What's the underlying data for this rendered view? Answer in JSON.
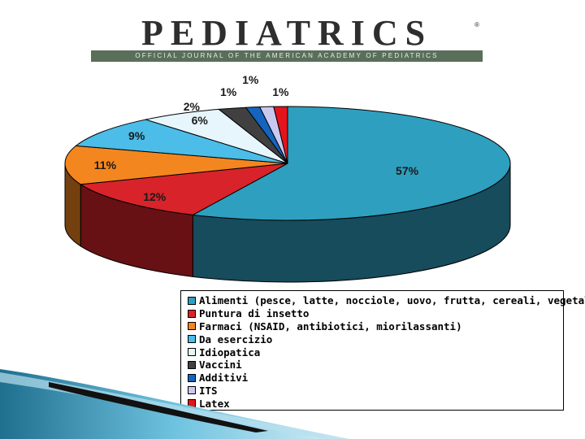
{
  "header": {
    "logo_title": "PEDIATRICS",
    "logo_subtitle": "OFFICIAL JOURNAL OF THE AMERICAN ACADEMY OF PEDIATRICS",
    "logo_mark": "®"
  },
  "chart_data": {
    "type": "pie",
    "style": "3d",
    "title": "",
    "legend_position": "bottom-right",
    "slices": [
      {
        "label": "Alimenti (pesce, latte, nocciole, uovo, frutta, cereali, vegetali)",
        "value": 57,
        "display": "57%",
        "color": "#2e9fbf"
      },
      {
        "label": "Puntura di insetto",
        "value": 12,
        "display": "12%",
        "color": "#d8232a"
      },
      {
        "label": "Farmaci (NSAID, antibiotici, miorilassanti)",
        "value": 11,
        "display": "11%",
        "color": "#f4861f"
      },
      {
        "label": "Da esercizio",
        "value": 9,
        "display": "9%",
        "color": "#4bbde8"
      },
      {
        "label": "Idiopatica",
        "value": 6,
        "display": "6%",
        "color": "#e6f6fc"
      },
      {
        "label": "Vaccini",
        "value": 2,
        "display": "2%",
        "color": "#404040"
      },
      {
        "label": "Additivi",
        "value": 1,
        "display": "1%",
        "color": "#1565c0"
      },
      {
        "label": "ITS",
        "value": 1,
        "display": "1%",
        "color": "#c9c9f0"
      },
      {
        "label": "Latex",
        "value": 1,
        "display": "1%",
        "color": "#e3141c"
      }
    ]
  }
}
